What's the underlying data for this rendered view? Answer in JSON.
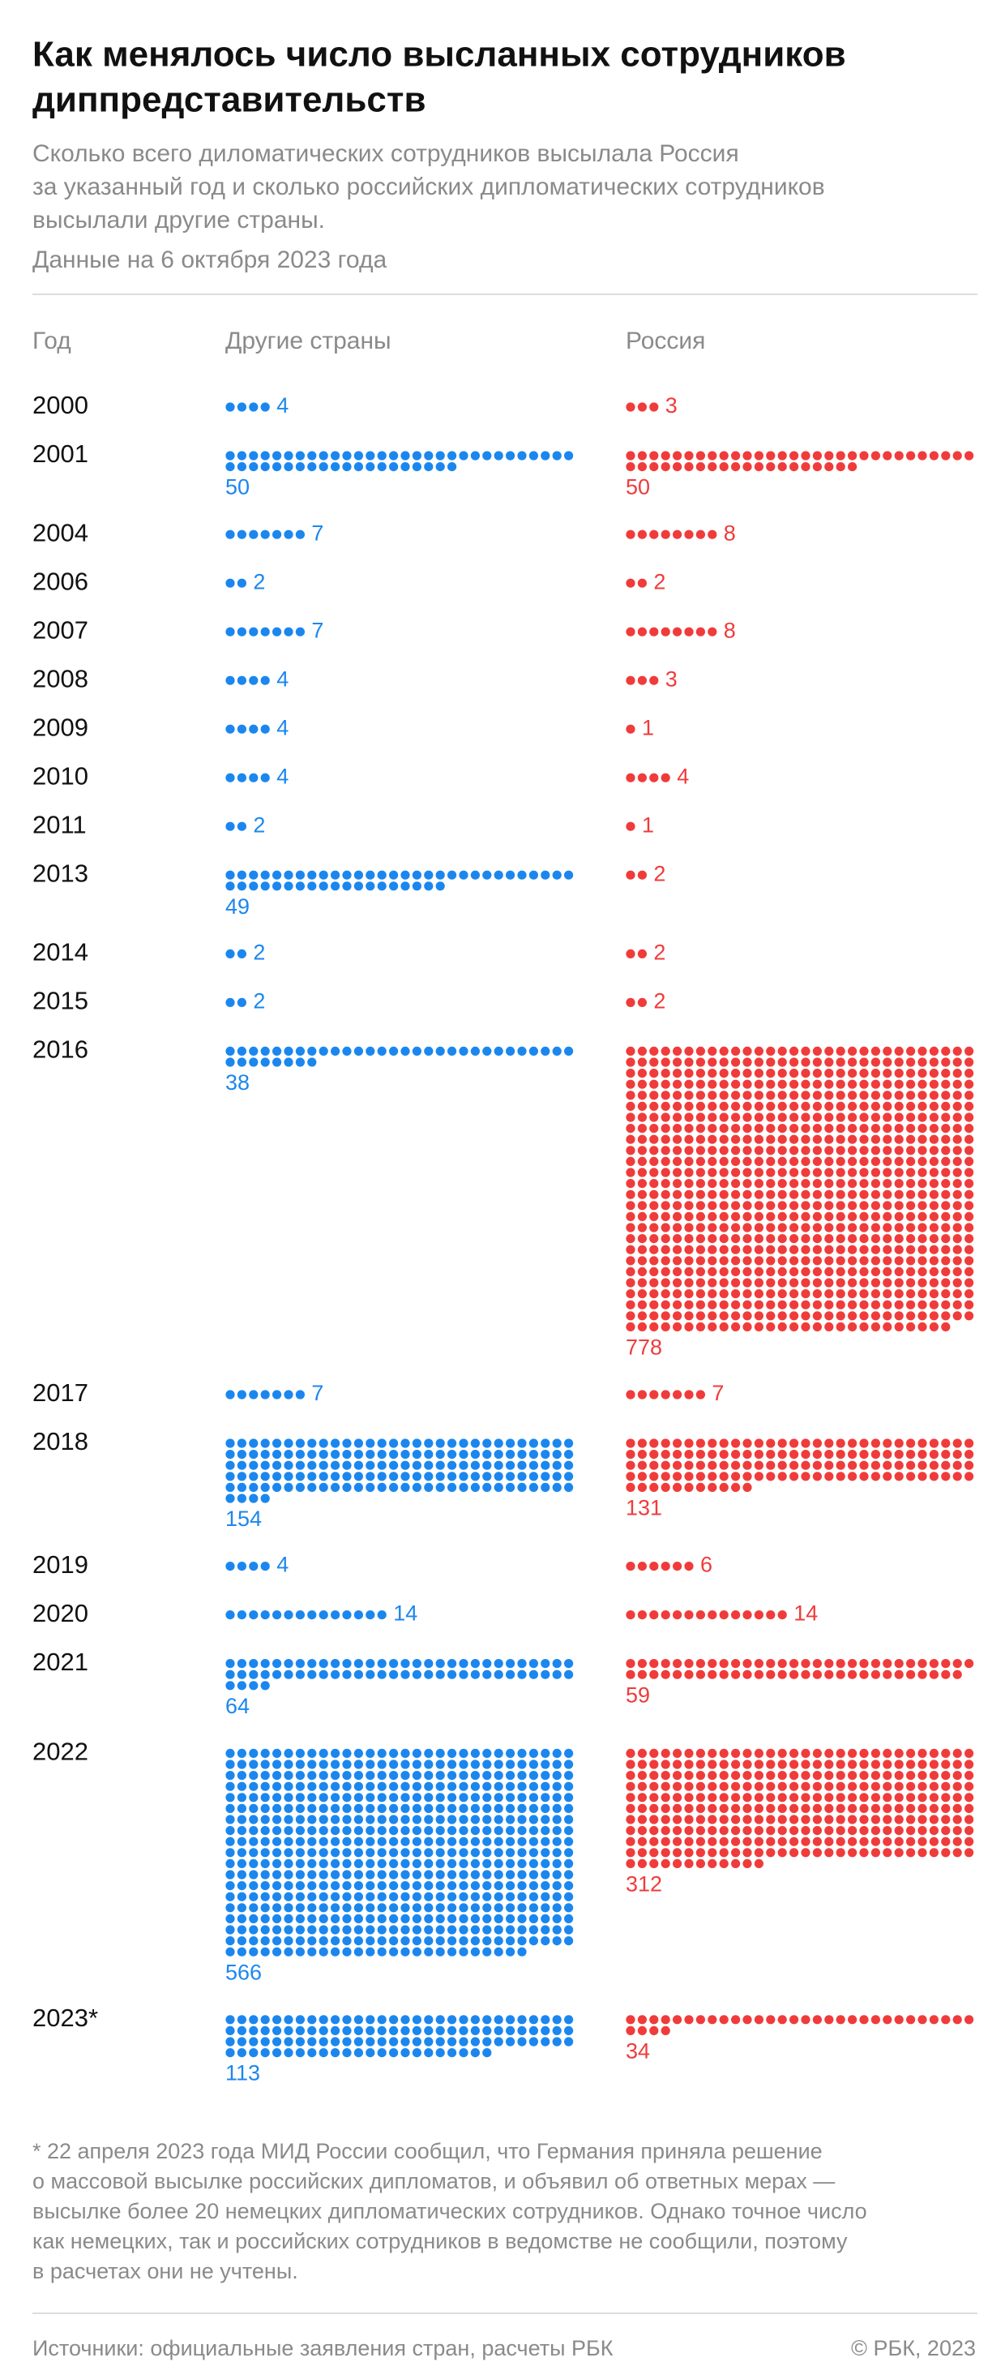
{
  "chart_data": {
    "type": "unit",
    "title": [
      "Как менялось число высланных сотрудников",
      "диппредставительств"
    ],
    "subtitle": [
      "Сколько всего диломатических сотрудников высылала Россия",
      "за указанный год и сколько российских дипломатических сотрудников",
      "высылали другие страны."
    ],
    "note": "Данные на 6 октября 2023 года",
    "x_label": "Год",
    "categories": [
      "2000",
      "2001",
      "2004",
      "2006",
      "2007",
      "2008",
      "2009",
      "2010",
      "2011",
      "2013",
      "2014",
      "2015",
      "2016",
      "2017",
      "2018",
      "2019",
      "2020",
      "2021",
      "2022",
      "2023*"
    ],
    "series": [
      {
        "name": "Другие страны",
        "color": "#1b87ee",
        "values": [
          4,
          50,
          7,
          2,
          7,
          4,
          4,
          4,
          2,
          49,
          2,
          2,
          38,
          7,
          154,
          4,
          14,
          64,
          566,
          113
        ]
      },
      {
        "name": "Россия",
        "color": "#f03b3b",
        "values": [
          3,
          50,
          8,
          2,
          8,
          3,
          1,
          4,
          1,
          2,
          2,
          2,
          778,
          7,
          131,
          6,
          14,
          59,
          312,
          34
        ]
      }
    ],
    "dots_per_row": 30,
    "footnote": [
      "* 22 апреля 2023 года МИД России сообщил, что Германия приняла решение",
      "о массовой высылке российских дипломатов, и объявил об ответных мерах —",
      "высылке более 20 немецких дипломатических сотрудников. Однако точное число",
      "как немецких, так и российских сотрудников в ведомстве не сообщили, поэтому",
      "в расчетах они не учтены."
    ],
    "source": "Источники: официальные заявления стран, расчеты РБК",
    "copyright": "© РБК, 2023"
  }
}
